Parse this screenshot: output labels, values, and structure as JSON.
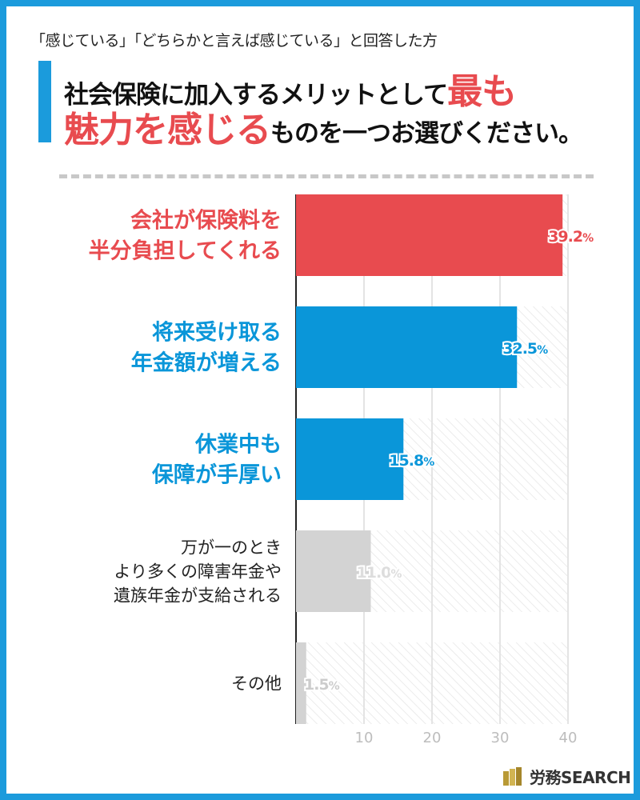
{
  "header": {
    "subtitle": "「感じている」「どちらかと言えば感じている」と回答した方",
    "title_line1_text": "社会保険に加入するメリットとして",
    "title_line1_accent": "最も",
    "title_line2_accent": "魅力を感じる",
    "title_line2_text": "ものを一つお選びください。"
  },
  "colors": {
    "frame": "#1b9bdc",
    "accent_red": "#e84b4f",
    "bar_red": "#e84b4f",
    "bar_blue": "#0a96d9",
    "bar_gray": "#d3d3d3",
    "label_gray_text": "#222222"
  },
  "logo": {
    "icon": "book-stack-icon",
    "text": "労務SEARCH"
  },
  "chart_data": {
    "type": "bar",
    "orientation": "horizontal",
    "categories": [
      [
        "会社が保険料を",
        "半分負担してくれる"
      ],
      [
        "将来受け取る",
        "年金額が増える"
      ],
      [
        "休業中も",
        "保障が手厚い"
      ],
      [
        "万が一のとき",
        "より多くの障害年金や",
        "遺族年金が支給される"
      ],
      [
        "その他"
      ]
    ],
    "values": [
      39.2,
      32.5,
      15.8,
      11.0,
      1.5
    ],
    "value_labels": [
      "39.2",
      "32.5",
      "15.8",
      "11.0",
      "1.5"
    ],
    "value_suffix": "%",
    "bar_colors": [
      "#e84b4f",
      "#0a96d9",
      "#0a96d9",
      "#d3d3d3",
      "#d3d3d3"
    ],
    "label_colors": [
      "#e84b4f",
      "#0a96d9",
      "#0a96d9",
      "#222222",
      "#222222"
    ],
    "value_label_colors": [
      "#e84b4f",
      "#0a96d9",
      "#0a96d9",
      "#dddddd",
      "#cccccc"
    ],
    "label_bold": [
      true,
      true,
      true,
      false,
      false
    ],
    "xlim": [
      0,
      40
    ],
    "xticks": [
      10,
      20,
      30,
      40
    ],
    "grid": true,
    "title": "",
    "xlabel": "",
    "ylabel": ""
  }
}
